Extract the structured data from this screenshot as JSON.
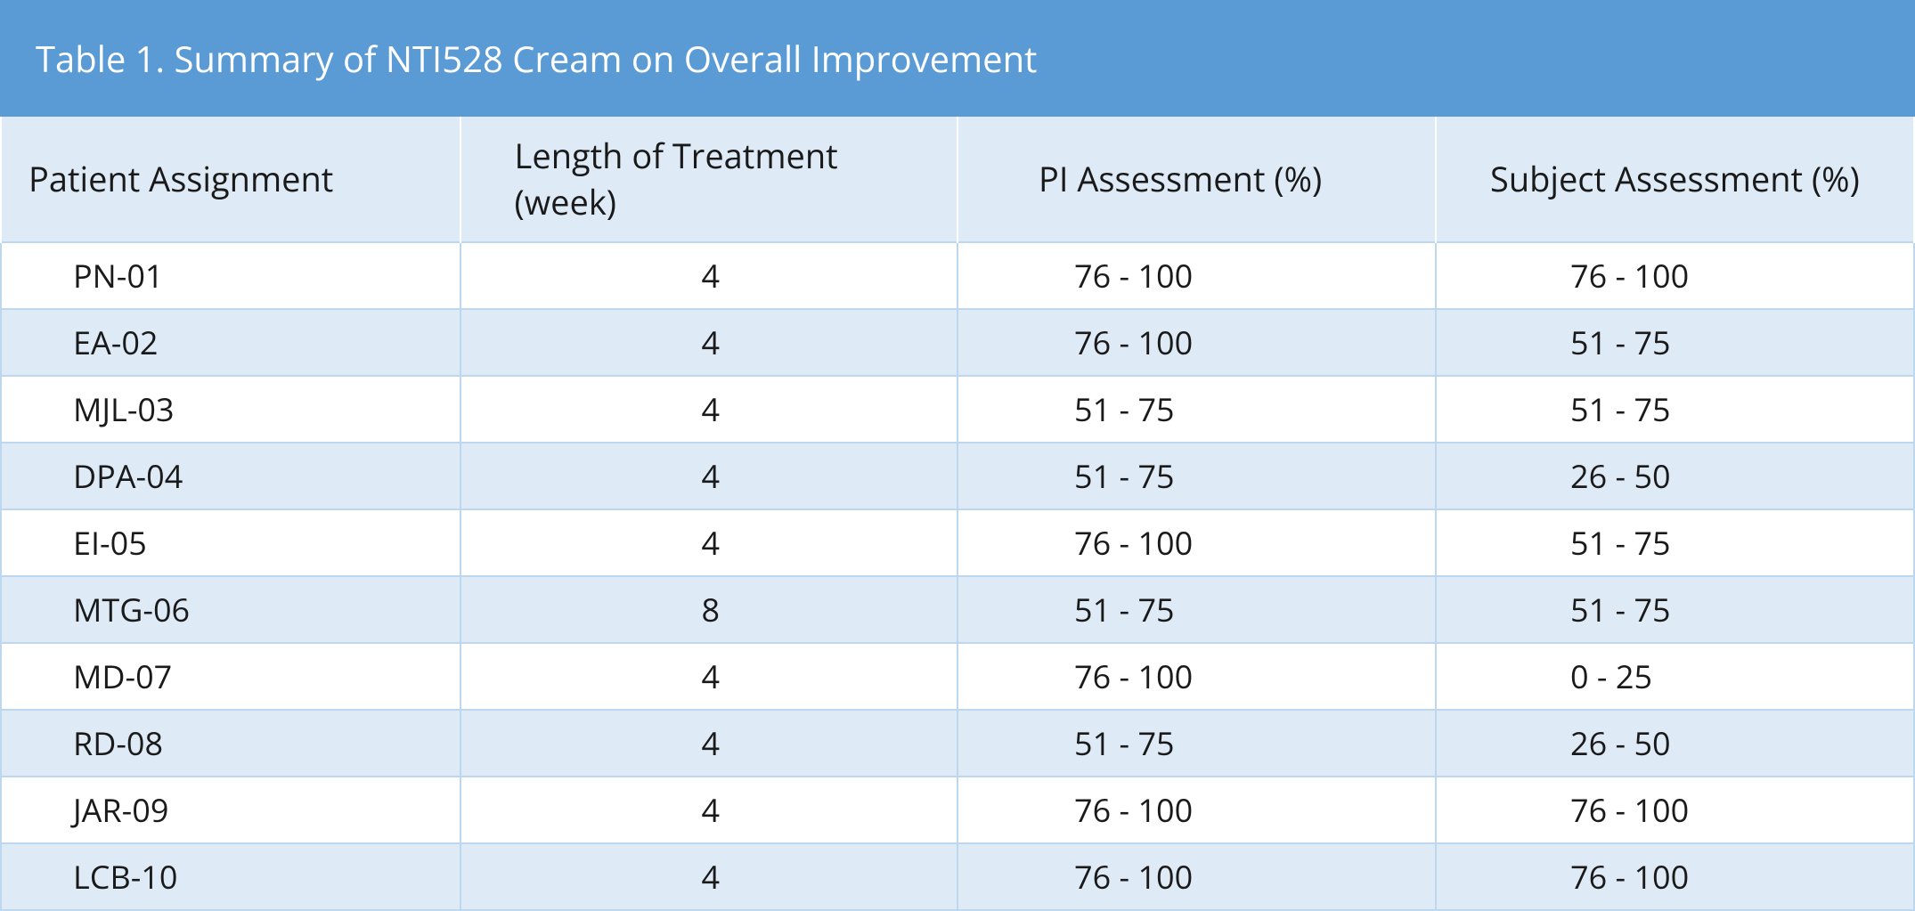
{
  "table": {
    "type": "table",
    "title": "Table 1. Summary of NTI528 Cream on Overall Improvement",
    "title_bg": "#5b9bd5",
    "title_color": "#ffffff",
    "title_fontsize": 40,
    "header_bg": "#deeaf6",
    "row_odd_bg": "#ffffff",
    "row_even_bg": "#deeaf6",
    "border_color": "#bdd7ee",
    "text_color": "#1a1a1a",
    "body_fontsize": 36,
    "header_fontsize": 38,
    "columns": [
      "Patient Assignment",
      "Length of Treatment (week)",
      "PI Assessment (%)",
      "Subject Assessment (%)"
    ],
    "rows": [
      {
        "patient": "PN-01",
        "length": "4",
        "pi": "76 - 100",
        "subject": "76 - 100"
      },
      {
        "patient": "EA-02",
        "length": "4",
        "pi": "76 - 100",
        "subject": "51 - 75"
      },
      {
        "patient": "MJL-03",
        "length": "4",
        "pi": "51 - 75",
        "subject": "51 - 75"
      },
      {
        "patient": "DPA-04",
        "length": "4",
        "pi": "51 - 75",
        "subject": "26 - 50"
      },
      {
        "patient": "EI-05",
        "length": "4",
        "pi": "76 - 100",
        "subject": "51 - 75"
      },
      {
        "patient": "MTG-06",
        "length": "8",
        "pi": "51 - 75",
        "subject": "51 - 75"
      },
      {
        "patient": "MD-07",
        "length": "4",
        "pi": "76 - 100",
        "subject": "0 - 25"
      },
      {
        "patient": "RD-08",
        "length": "4",
        "pi": "51 - 75",
        "subject": "26 - 50"
      },
      {
        "patient": "JAR-09",
        "length": "4",
        "pi": "76 - 100",
        "subject": "76 - 100"
      },
      {
        "patient": "LCB-10",
        "length": "4",
        "pi": "76 - 100",
        "subject": "76 - 100"
      }
    ]
  }
}
